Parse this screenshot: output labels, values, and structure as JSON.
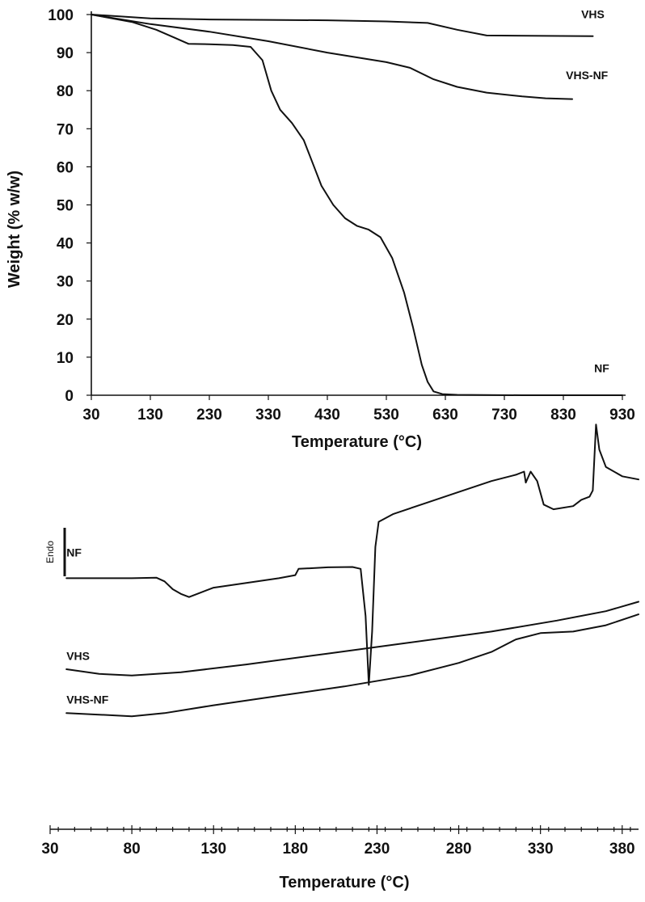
{
  "chart_data": [
    {
      "type": "line",
      "title": "",
      "xlabel": "Temperature (°C)",
      "ylabel": "Weight (% w/w)",
      "xlim": [
        30,
        930
      ],
      "ylim": [
        0,
        100
      ],
      "x_ticks": [
        "30",
        "130",
        "230",
        "330",
        "430",
        "530",
        "630",
        "730",
        "830",
        "930"
      ],
      "y_ticks": [
        "0",
        "10",
        "20",
        "30",
        "40",
        "50",
        "60",
        "70",
        "80",
        "90",
        "100"
      ],
      "grid": false,
      "series": [
        {
          "name": "VHS",
          "label_pos": [
            880,
            99
          ],
          "points": [
            [
              30,
              100
            ],
            [
              130,
              99
            ],
            [
              230,
              98.7
            ],
            [
              330,
              98.6
            ],
            [
              430,
              98.5
            ],
            [
              530,
              98.2
            ],
            [
              600,
              97.8
            ],
            [
              650,
              96
            ],
            [
              700,
              94.5
            ],
            [
              800,
              94.4
            ],
            [
              880,
              94.3
            ]
          ]
        },
        {
          "name": "VHS-NF",
          "label_pos": [
            870,
            83
          ],
          "points": [
            [
              30,
              100
            ],
            [
              130,
              97.5
            ],
            [
              230,
              95.5
            ],
            [
              330,
              93
            ],
            [
              430,
              90
            ],
            [
              530,
              87.5
            ],
            [
              570,
              86
            ],
            [
              610,
              83
            ],
            [
              650,
              81
            ],
            [
              700,
              79.5
            ],
            [
              760,
              78.5
            ],
            [
              800,
              78
            ],
            [
              845,
              77.8
            ]
          ]
        },
        {
          "name": "NF",
          "label_pos": [
            895,
            6
          ],
          "points": [
            [
              30,
              100
            ],
            [
              100,
              98
            ],
            [
              140,
              96
            ],
            [
              170,
              94
            ],
            [
              195,
              92.3
            ],
            [
              230,
              92.2
            ],
            [
              270,
              92
            ],
            [
              300,
              91.5
            ],
            [
              320,
              88
            ],
            [
              335,
              80
            ],
            [
              350,
              75
            ],
            [
              370,
              71.5
            ],
            [
              390,
              67
            ],
            [
              405,
              61
            ],
            [
              420,
              55
            ],
            [
              440,
              50
            ],
            [
              460,
              46.5
            ],
            [
              480,
              44.5
            ],
            [
              500,
              43.5
            ],
            [
              520,
              41.5
            ],
            [
              540,
              36
            ],
            [
              560,
              27
            ],
            [
              575,
              18
            ],
            [
              590,
              8
            ],
            [
              600,
              3.5
            ],
            [
              610,
              1
            ],
            [
              625,
              0.3
            ],
            [
              650,
              0.1
            ],
            [
              760,
              0
            ],
            [
              930,
              0
            ]
          ]
        }
      ]
    },
    {
      "type": "line",
      "title": "",
      "xlabel": "Temperature (°C)",
      "ylabel": "",
      "xlim": [
        30,
        390
      ],
      "y_units": "arbitrary (heat flow, Endo up)",
      "ylim": [
        0,
        10
      ],
      "x_ticks": [
        "30",
        "80",
        "130",
        "180",
        "230",
        "280",
        "330",
        "380"
      ],
      "annotation": "Endo",
      "grid": false,
      "series": [
        {
          "name": "NF",
          "label_pos": [
            40,
            6.9
          ],
          "points": [
            [
              40,
              6.2
            ],
            [
              60,
              6.2
            ],
            [
              65,
              6.2
            ],
            [
              80,
              6.2
            ],
            [
              95,
              6.22
            ],
            [
              100,
              6.1
            ],
            [
              105,
              5.85
            ],
            [
              110,
              5.7
            ],
            [
              115,
              5.6
            ],
            [
              120,
              5.7
            ],
            [
              130,
              5.9
            ],
            [
              150,
              6.05
            ],
            [
              170,
              6.2
            ],
            [
              180,
              6.3
            ],
            [
              182,
              6.5
            ],
            [
              200,
              6.55
            ],
            [
              215,
              6.56
            ],
            [
              220,
              6.5
            ],
            [
              223,
              5.0
            ],
            [
              225,
              2.8
            ],
            [
              227,
              4.5
            ],
            [
              229,
              7.2
            ],
            [
              231,
              8.0
            ],
            [
              240,
              8.25
            ],
            [
              260,
              8.6
            ],
            [
              280,
              8.95
            ],
            [
              300,
              9.3
            ],
            [
              315,
              9.5
            ],
            [
              320,
              9.6
            ],
            [
              321,
              9.25
            ],
            [
              324,
              9.6
            ],
            [
              328,
              9.3
            ],
            [
              332,
              8.55
            ],
            [
              338,
              8.4
            ],
            [
              350,
              8.5
            ],
            [
              355,
              8.7
            ],
            [
              360,
              8.8
            ],
            [
              362,
              9.0
            ],
            [
              364,
              11.1
            ],
            [
              366,
              10.3
            ],
            [
              370,
              9.75
            ],
            [
              380,
              9.45
            ],
            [
              390,
              9.35
            ]
          ]
        },
        {
          "name": "VHS",
          "label_pos": [
            40,
            3.6
          ],
          "points": [
            [
              40,
              3.3
            ],
            [
              60,
              3.15
            ],
            [
              80,
              3.1
            ],
            [
              110,
              3.2
            ],
            [
              150,
              3.45
            ],
            [
              200,
              3.8
            ],
            [
              250,
              4.15
            ],
            [
              300,
              4.5
            ],
            [
              340,
              4.85
            ],
            [
              370,
              5.15
            ],
            [
              390,
              5.45
            ]
          ]
        },
        {
          "name": "VHS-NF",
          "label_pos": [
            40,
            2.2
          ],
          "points": [
            [
              40,
              1.9
            ],
            [
              60,
              1.85
            ],
            [
              80,
              1.8
            ],
            [
              100,
              1.9
            ],
            [
              130,
              2.15
            ],
            [
              170,
              2.45
            ],
            [
              210,
              2.75
            ],
            [
              250,
              3.1
            ],
            [
              280,
              3.5
            ],
            [
              300,
              3.85
            ],
            [
              315,
              4.25
            ],
            [
              330,
              4.45
            ],
            [
              350,
              4.5
            ],
            [
              370,
              4.7
            ],
            [
              390,
              5.05
            ]
          ]
        }
      ]
    }
  ]
}
